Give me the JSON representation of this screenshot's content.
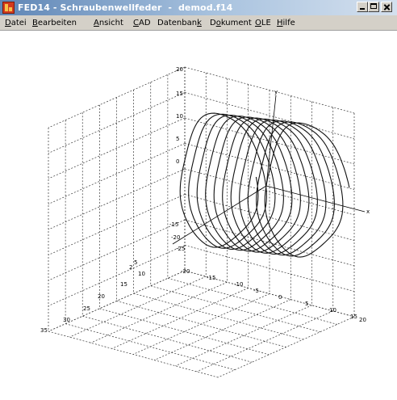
{
  "window": {
    "title": "FED14 - Schraubenwellfeder  -  demod.f14",
    "app_icon": "fed14-app-icon"
  },
  "menu": [
    {
      "label": "Datei",
      "u": "D"
    },
    {
      "label": "Bearbeiten",
      "u": "B"
    },
    {
      "label": "Ansicht",
      "u": "A"
    },
    {
      "label": "CAD",
      "u": "C"
    },
    {
      "label": "Datenbank",
      "u": "k"
    },
    {
      "label": "Dokument",
      "u": "o"
    },
    {
      "label": "OLE",
      "u": "O"
    },
    {
      "label": "Hilfe",
      "u": "H"
    }
  ],
  "plot": {
    "z_axis_ticks": [
      "20",
      "15",
      "10",
      "5",
      "0"
    ],
    "x_axis_ticks": [
      "-20",
      "-15",
      "-10",
      "-5",
      "0",
      "5",
      "10",
      "15",
      "20"
    ],
    "y_axis_ticks": [
      "2",
      "5",
      "10",
      "15",
      "20",
      "25",
      "30",
      "35"
    ],
    "left_z_ticks": [
      "-15",
      "-20",
      "-25"
    ],
    "axis_labels": {
      "y": "y",
      "x": "x"
    }
  }
}
